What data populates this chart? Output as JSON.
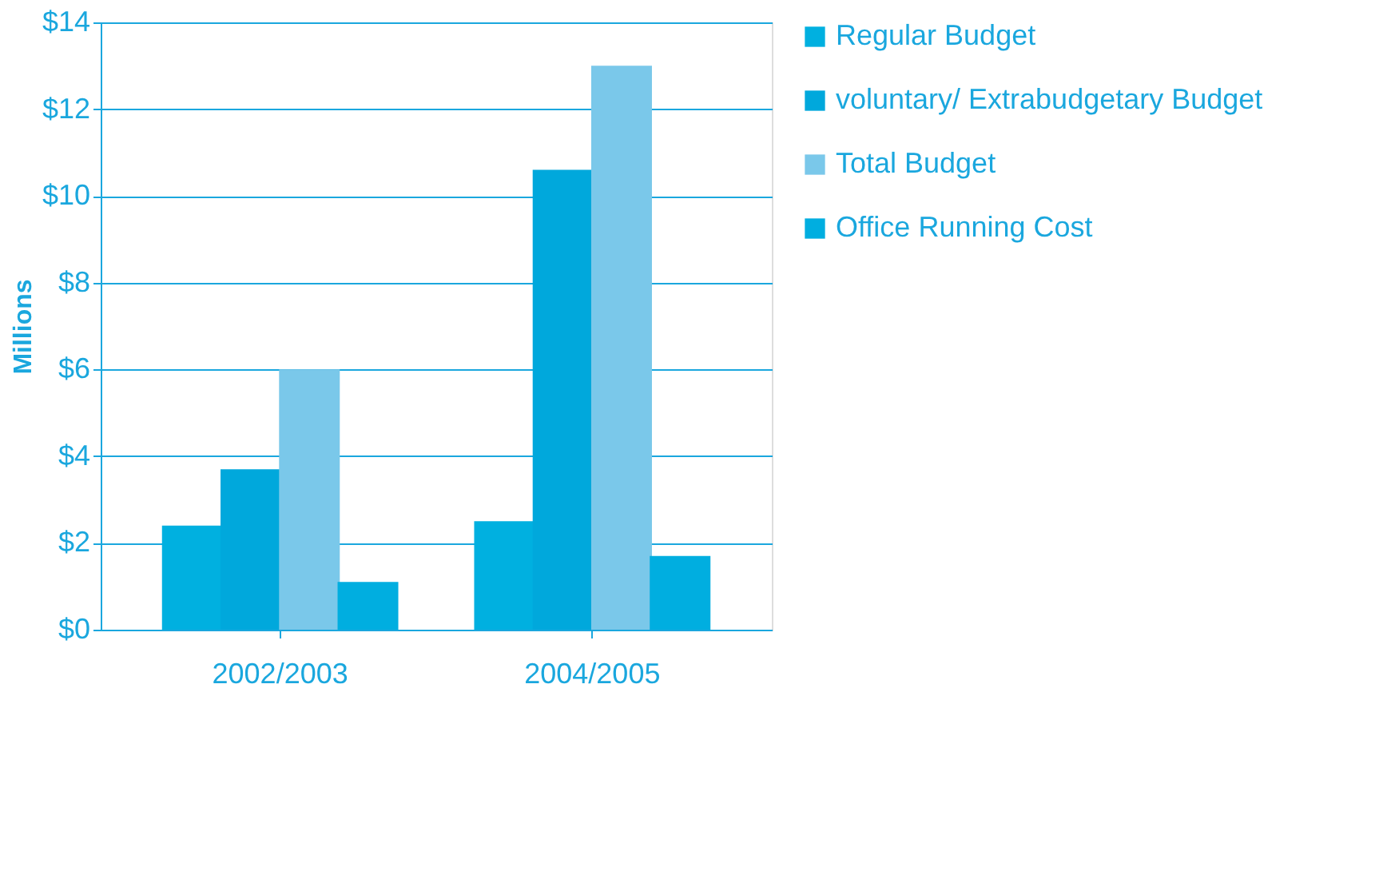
{
  "chart_data": {
    "type": "bar",
    "ylabel": "Millions",
    "categories": [
      "2002/2003",
      "2004/2005"
    ],
    "series": [
      {
        "name": "Regular Budget",
        "color": "#00b0e0",
        "values": [
          2.4,
          2.5
        ]
      },
      {
        "name": "voluntary/ Extrabudgetary Budget",
        "color": "#00a8dc",
        "values": [
          3.7,
          10.6
        ]
      },
      {
        "name": "Total Budget",
        "color": "#7ac8ea",
        "values": [
          6.0,
          13.0
        ]
      },
      {
        "name": "Office Running Cost",
        "color": "#00aee0",
        "values": [
          1.1,
          1.7
        ]
      }
    ],
    "ylim": [
      0,
      14
    ],
    "yticks": [
      {
        "value": 0,
        "label": "$0"
      },
      {
        "value": 2,
        "label": "$2"
      },
      {
        "value": 4,
        "label": "$4"
      },
      {
        "value": 6,
        "label": "$6"
      },
      {
        "value": 8,
        "label": "$8"
      },
      {
        "value": 10,
        "label": "$10"
      },
      {
        "value": 12,
        "label": "$12"
      },
      {
        "value": 14,
        "label": "$14"
      }
    ],
    "grid": "y",
    "legend": "right"
  }
}
